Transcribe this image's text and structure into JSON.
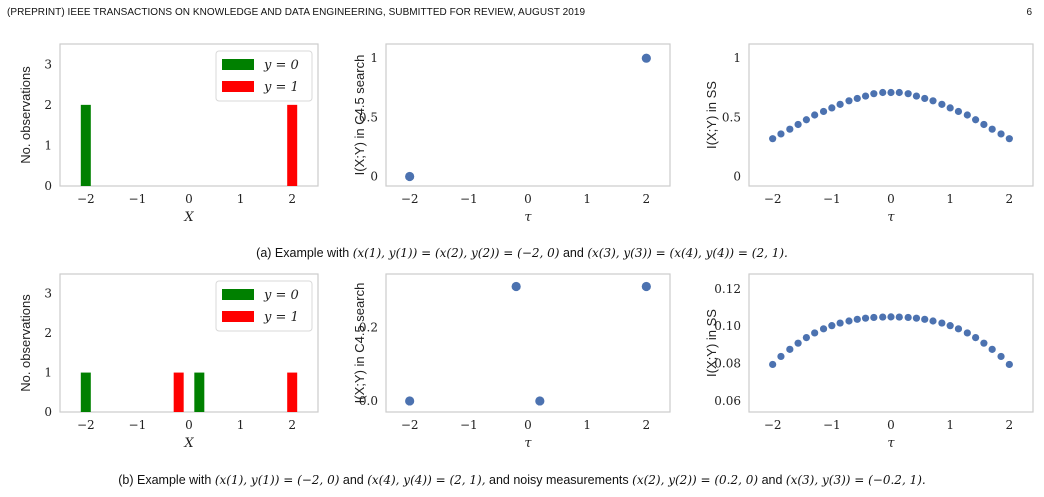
{
  "header": {
    "running_title": "(PREPRINT) IEEE TRANSACTIONS ON KNOWLEDGE AND DATA ENGINEERING, SUBMITTED FOR REVIEW, AUGUST 2019",
    "page_number": "6"
  },
  "captions": {
    "a_prefix": "(a) Example with",
    "a_math1": "(x(1), y(1)) = (x(2), y(2)) = (−2, 0)",
    "a_and": "and",
    "a_math2": "(x(3), y(3)) = (x(4), y(4)) = (2, 1).",
    "b_prefix": "(b) Example with",
    "b_math1": "(x(1), y(1)) = (−2, 0)",
    "b_and1": "and",
    "b_math2": "(x(4), y(4)) = (2, 1),",
    "b_mid": "and noisy measurements",
    "b_math3": "(x(2), y(2)) = (0.2, 0)",
    "b_and2": "and",
    "b_math4": "(x(3), y(3)) = (−0.2, 1)."
  },
  "colors": {
    "green": "#008000",
    "red": "#ff0000",
    "points": "#4c72b0",
    "frame": "#cccccc"
  },
  "chart_data": [
    {
      "type": "bar",
      "panel": "a-left",
      "xlabel": "X",
      "ylabel": "No. observations",
      "xlim": [
        -2.5,
        2.5
      ],
      "ylim": [
        0,
        3.5
      ],
      "xticks": [
        "−2",
        "−1",
        "0",
        "1",
        "2"
      ],
      "yticks": [
        "0",
        "1",
        "2",
        "3"
      ],
      "legend": {
        "placement": "top-right",
        "entries": [
          "y = 0",
          "y = 1"
        ]
      },
      "series": [
        {
          "name": "y = 0",
          "color": "green",
          "x": [
            -2
          ],
          "values": [
            2
          ]
        },
        {
          "name": "y = 1",
          "color": "red",
          "x": [
            2
          ],
          "values": [
            2
          ]
        }
      ]
    },
    {
      "type": "scatter",
      "panel": "a-mid",
      "xlabel": "τ",
      "ylabel": "I(X;Y) in C4.5 search",
      "xlim": [
        -2.4,
        2.4
      ],
      "ylim": [
        -0.08,
        1.12
      ],
      "xticks": [
        "−2",
        "−1",
        "0",
        "1",
        "2"
      ],
      "yticks": [
        "0",
        "0.5",
        "1"
      ],
      "x": [
        -2,
        2
      ],
      "y": [
        0,
        1
      ]
    },
    {
      "type": "scatter",
      "panel": "a-right",
      "xlabel": "τ",
      "ylabel": "I(X;Y) in SS",
      "xlim": [
        -2.4,
        2.4
      ],
      "ylim": [
        -0.08,
        1.12
      ],
      "xticks": [
        "−2",
        "−1",
        "0",
        "1",
        "2"
      ],
      "yticks": [
        "0",
        "0.5",
        "1"
      ],
      "x": [
        -2.0,
        -1.86,
        -1.71,
        -1.57,
        -1.43,
        -1.29,
        -1.14,
        -1.0,
        -0.86,
        -0.71,
        -0.57,
        -0.43,
        -0.29,
        -0.14,
        0.0,
        0.14,
        0.29,
        0.43,
        0.57,
        0.71,
        0.86,
        1.0,
        1.14,
        1.29,
        1.43,
        1.57,
        1.71,
        1.86,
        2.0
      ],
      "y": [
        0.32,
        0.36,
        0.4,
        0.44,
        0.48,
        0.52,
        0.55,
        0.58,
        0.61,
        0.64,
        0.66,
        0.68,
        0.7,
        0.71,
        0.71,
        0.71,
        0.7,
        0.68,
        0.66,
        0.64,
        0.61,
        0.58,
        0.55,
        0.52,
        0.48,
        0.44,
        0.4,
        0.36,
        0.32
      ]
    },
    {
      "type": "bar",
      "panel": "b-left",
      "xlabel": "X",
      "ylabel": "No. observations",
      "xlim": [
        -2.5,
        2.5
      ],
      "ylim": [
        0,
        3.5
      ],
      "xticks": [
        "−2",
        "−1",
        "0",
        "1",
        "2"
      ],
      "yticks": [
        "0",
        "1",
        "2",
        "3"
      ],
      "legend": {
        "placement": "top-right",
        "entries": [
          "y = 0",
          "y = 1"
        ]
      },
      "series": [
        {
          "name": "y = 0",
          "color": "green",
          "x": [
            -2,
            0.2
          ],
          "values": [
            1,
            1
          ]
        },
        {
          "name": "y = 1",
          "color": "red",
          "x": [
            -0.2,
            2
          ],
          "values": [
            1,
            1
          ]
        }
      ]
    },
    {
      "type": "scatter",
      "panel": "b-mid",
      "xlabel": "τ",
      "ylabel": "I(X;Y) in C4.5 search",
      "xlim": [
        -2.4,
        2.4
      ],
      "ylim": [
        -0.03,
        0.345
      ],
      "xticks": [
        "−2",
        "−1",
        "0",
        "1",
        "2"
      ],
      "yticks": [
        "0.0",
        "0.2"
      ],
      "x": [
        -2,
        -0.2,
        0.2,
        2
      ],
      "y": [
        0.0,
        0.311,
        0.0,
        0.311
      ]
    },
    {
      "type": "scatter",
      "panel": "b-right",
      "xlabel": "τ",
      "ylabel": "I(X;Y) in SS",
      "xlim": [
        -2.4,
        2.4
      ],
      "ylim": [
        0.054,
        0.128
      ],
      "xticks": [
        "−2",
        "−1",
        "0",
        "1",
        "2"
      ],
      "yticks": [
        "0.06",
        "0.08",
        "0.10",
        "0.12"
      ],
      "x": [
        -2.0,
        -1.86,
        -1.71,
        -1.57,
        -1.43,
        -1.29,
        -1.14,
        -1.0,
        -0.86,
        -0.71,
        -0.57,
        -0.43,
        -0.29,
        -0.14,
        0.0,
        0.14,
        0.29,
        0.43,
        0.57,
        0.71,
        0.86,
        1.0,
        1.14,
        1.29,
        1.43,
        1.57,
        1.71,
        1.86,
        2.0
      ],
      "y": [
        0.0795,
        0.0838,
        0.0876,
        0.0909,
        0.0939,
        0.0964,
        0.0986,
        0.1003,
        0.1017,
        0.1028,
        0.1037,
        0.1043,
        0.1047,
        0.1049,
        0.105,
        0.1049,
        0.1047,
        0.1043,
        0.1037,
        0.1028,
        0.1017,
        0.1003,
        0.0986,
        0.0964,
        0.0939,
        0.0909,
        0.0876,
        0.0838,
        0.0795
      ]
    }
  ]
}
